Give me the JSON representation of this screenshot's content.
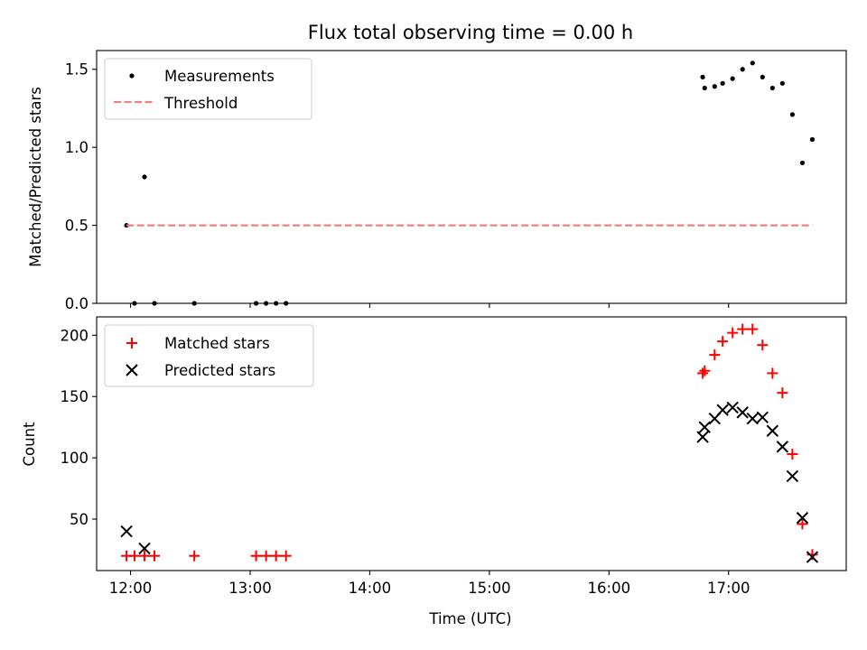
{
  "chart_data": [
    {
      "type": "scatter",
      "title": "Flux total observing time = 0.00 h",
      "xlabel": "",
      "ylabel": "Matched/Predicted stars",
      "xlim": [
        "11:43",
        "17:59"
      ],
      "ylim": [
        0,
        1.62
      ],
      "yticks": [
        0.0,
        0.5,
        1.0,
        1.5
      ],
      "ytick_labels": [
        "0.0",
        "0.5",
        "1.0",
        "1.5"
      ],
      "legend_position": "top-left",
      "grid": false,
      "series": [
        {
          "name": "Measurements",
          "kind": "scatter",
          "marker": "dot",
          "color": "#000000",
          "points": [
            {
              "x": "11:58",
              "y": 0.5
            },
            {
              "x": "12:02",
              "y": 0.0
            },
            {
              "x": "12:07",
              "y": 0.81
            },
            {
              "x": "12:12",
              "y": 0.0
            },
            {
              "x": "12:32",
              "y": 0.0
            },
            {
              "x": "13:03",
              "y": 0.0
            },
            {
              "x": "13:08",
              "y": 0.0
            },
            {
              "x": "13:13",
              "y": 0.0
            },
            {
              "x": "13:18",
              "y": 0.0
            },
            {
              "x": "16:47",
              "y": 1.45
            },
            {
              "x": "16:48",
              "y": 1.38
            },
            {
              "x": "16:53",
              "y": 1.39
            },
            {
              "x": "16:57",
              "y": 1.41
            },
            {
              "x": "17:02",
              "y": 1.44
            },
            {
              "x": "17:07",
              "y": 1.5
            },
            {
              "x": "17:12",
              "y": 1.54
            },
            {
              "x": "17:17",
              "y": 1.45
            },
            {
              "x": "17:22",
              "y": 1.38
            },
            {
              "x": "17:27",
              "y": 1.41
            },
            {
              "x": "17:32",
              "y": 1.21
            },
            {
              "x": "17:37",
              "y": 0.9
            },
            {
              "x": "17:42",
              "y": 1.05
            }
          ]
        },
        {
          "name": "Threshold",
          "kind": "line",
          "style": "dashed",
          "color": "#f08080",
          "points": [
            {
              "x": "11:58",
              "y": 0.5
            },
            {
              "x": "17:42",
              "y": 0.5
            }
          ]
        }
      ]
    },
    {
      "type": "scatter",
      "title": "",
      "xlabel": "Time (UTC)",
      "ylabel": "Count",
      "xlim": [
        "11:43",
        "17:59"
      ],
      "ylim": [
        8,
        215
      ],
      "xticks": [
        "12:00",
        "13:00",
        "14:00",
        "15:00",
        "16:00",
        "17:00"
      ],
      "xtick_labels": [
        "12:00",
        "13:00",
        "14:00",
        "15:00",
        "16:00",
        "17:00"
      ],
      "yticks": [
        50,
        100,
        150,
        200
      ],
      "ytick_labels": [
        "50",
        "100",
        "150",
        "200"
      ],
      "legend_position": "top-left",
      "grid": false,
      "series": [
        {
          "name": "Matched stars",
          "kind": "scatter",
          "marker": "plus",
          "color": "#ff0000",
          "points": [
            {
              "x": "11:58",
              "y": 20
            },
            {
              "x": "12:02",
              "y": 20
            },
            {
              "x": "12:07",
              "y": 20
            },
            {
              "x": "12:12",
              "y": 20
            },
            {
              "x": "12:32",
              "y": 20
            },
            {
              "x": "13:03",
              "y": 20
            },
            {
              "x": "13:08",
              "y": 20
            },
            {
              "x": "13:13",
              "y": 20
            },
            {
              "x": "13:18",
              "y": 20
            },
            {
              "x": "16:47",
              "y": 169
            },
            {
              "x": "16:48",
              "y": 171
            },
            {
              "x": "16:53",
              "y": 184
            },
            {
              "x": "16:57",
              "y": 195
            },
            {
              "x": "17:02",
              "y": 202
            },
            {
              "x": "17:07",
              "y": 205
            },
            {
              "x": "17:12",
              "y": 205
            },
            {
              "x": "17:17",
              "y": 192
            },
            {
              "x": "17:22",
              "y": 169
            },
            {
              "x": "17:27",
              "y": 153
            },
            {
              "x": "17:32",
              "y": 103
            },
            {
              "x": "17:37",
              "y": 46
            },
            {
              "x": "17:42",
              "y": 21
            }
          ]
        },
        {
          "name": "Predicted stars",
          "kind": "scatter",
          "marker": "x",
          "color": "#000000",
          "points": [
            {
              "x": "11:58",
              "y": 40
            },
            {
              "x": "12:07",
              "y": 26
            },
            {
              "x": "16:47",
              "y": 117
            },
            {
              "x": "16:48",
              "y": 125
            },
            {
              "x": "16:53",
              "y": 132
            },
            {
              "x": "16:57",
              "y": 139
            },
            {
              "x": "17:02",
              "y": 141
            },
            {
              "x": "17:07",
              "y": 137
            },
            {
              "x": "17:12",
              "y": 132
            },
            {
              "x": "17:17",
              "y": 133
            },
            {
              "x": "17:22",
              "y": 122
            },
            {
              "x": "17:27",
              "y": 109
            },
            {
              "x": "17:32",
              "y": 85
            },
            {
              "x": "17:37",
              "y": 51
            },
            {
              "x": "17:42",
              "y": 19
            }
          ]
        }
      ]
    }
  ]
}
